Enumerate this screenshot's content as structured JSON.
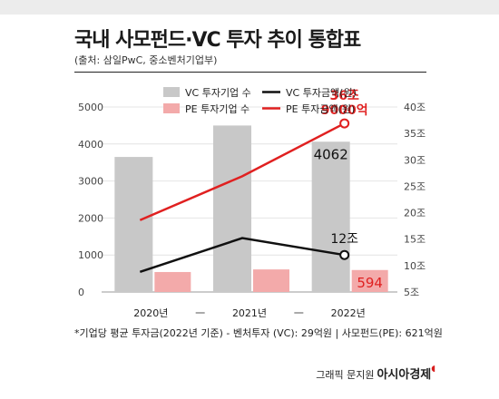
{
  "header": {
    "title": "국내 사모펀드·VC 투자 추이 통합표",
    "source": "(출처: 삼일PwC, 중소벤처기업부)"
  },
  "legend": {
    "vc_count": "VC 투자기업 수",
    "vc_amount": "VC 투자금액(원)",
    "pe_count": "PE 투자기업 수",
    "pe_amount": "PE 투자금액(원)"
  },
  "colors": {
    "vc_bar": "#c8c8c8",
    "pe_bar": "#f3aaaa",
    "vc_line": "#111111",
    "pe_line": "#e02020"
  },
  "chart_data": {
    "type": "bar+line",
    "categories": [
      "2020년",
      "2021년",
      "2022년"
    ],
    "left_axis": {
      "ticks": [
        "0",
        "1000",
        "2000",
        "3000",
        "4000",
        "5000"
      ],
      "ylim": [
        0,
        5000
      ]
    },
    "right_axis": {
      "ticks": [
        "5조",
        "10조",
        "15조",
        "20조",
        "25조",
        "30조",
        "35조",
        "40조"
      ],
      "ylim": [
        5,
        40
      ]
    },
    "bars": [
      {
        "name": "VC 투자기업 수",
        "values": [
          3650,
          4500,
          4062
        ]
      },
      {
        "name": "PE 투자기업 수",
        "values": [
          540,
          610,
          594
        ]
      }
    ],
    "lines": [
      {
        "name": "VC 투자금액(원)",
        "values": [
          8.8,
          15.2,
          12.0
        ]
      },
      {
        "name": "PE 투자금액(원)",
        "values": [
          18.6,
          26.9,
          36.9
        ]
      }
    ],
    "annotations": {
      "vc_bar_2022": "4062",
      "pe_bar_2022": "594",
      "vc_amount_2022": "12조",
      "pe_amount_2022_line1": "36조",
      "pe_amount_2022_line2": "9000억"
    }
  },
  "footer": {
    "note": "*기업당 평균 투자금(2022년 기준) - 벤처투자 (VC): 29억원 | 사모펀드(PE): 621억원",
    "credit": "그래픽 문지원",
    "brand": "아시아경제"
  }
}
